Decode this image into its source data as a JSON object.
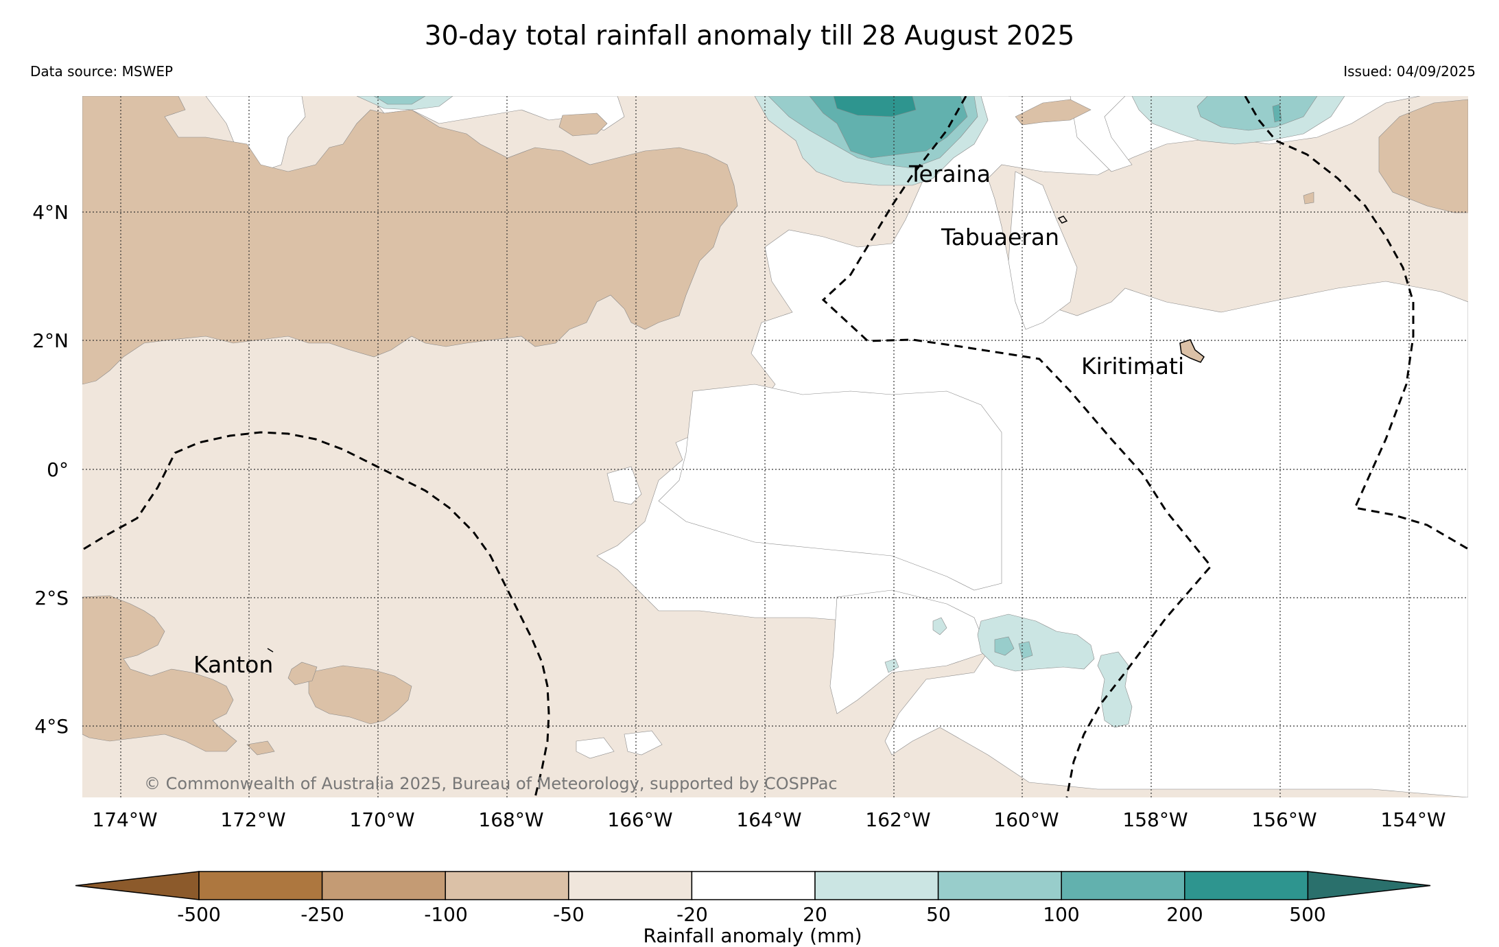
{
  "header": {
    "title": "30-day total rainfall anomaly till 28 August 2025",
    "data_source": "Data source: MSWEP",
    "issued": "Issued: 04/09/2025"
  },
  "map": {
    "lat_labels": [
      "4°N",
      "2°N",
      "0°",
      "2°S",
      "4°S"
    ],
    "lon_labels": [
      "174°W",
      "172°W",
      "170°W",
      "168°W",
      "166°W",
      "164°W",
      "162°W",
      "160°W",
      "158°W",
      "156°W",
      "154°W"
    ],
    "places": {
      "teraina": "Teraina",
      "tabuaeran": "Tabuaeran",
      "kiritimati": "Kiritimati",
      "kanton": "Kanton"
    },
    "copyright": "© Commonwealth of Australia 2025, Bureau of Meteorology, supported by COSPPac"
  },
  "colorbar": {
    "label": "Rainfall anomaly (mm)",
    "ticks": [
      "-500",
      "-250",
      "-100",
      "-50",
      "-20",
      "20",
      "50",
      "100",
      "200",
      "500"
    ],
    "colors": [
      "#8c5a2b",
      "#ad773f",
      "#c49b74",
      "#dbc1a7",
      "#f0e6dc",
      "#ffffff",
      "#cbe5e3",
      "#98cdcb",
      "#62b1ae",
      "#2e958f",
      "#2a706c"
    ]
  }
}
